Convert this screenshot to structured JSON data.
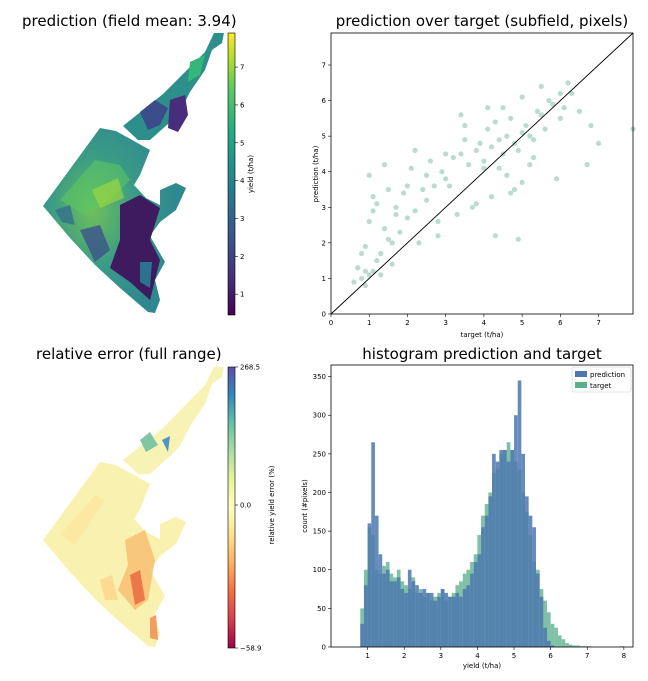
{
  "panels": {
    "prediction_map": {
      "title": "prediction (field mean: 3.94)",
      "colorbar_label": "yield (t/ha)",
      "colorbar_ticks": [
        "1",
        "2",
        "3",
        "4",
        "5",
        "6",
        "7"
      ],
      "colorbar_range": [
        0.45,
        7.9
      ],
      "colormap": "viridis-like (dark purple → teal → green → yellow)"
    },
    "error_map": {
      "title": "relative error (full range)",
      "colorbar_label": "relative yield error (%)",
      "colorbar_ticks": [
        "268.5",
        "0.0",
        "−58.9"
      ],
      "colormap": "Spectral (red → yellow → green → blue)"
    }
  },
  "chart_data": [
    {
      "type": "scatter",
      "title": "prediction over target (subfield, pixels)",
      "xlabel": "target (t/ha)",
      "ylabel": "prediction (t/ha)",
      "xlim": [
        0,
        7.9
      ],
      "ylim": [
        0,
        7.9
      ],
      "xticks": [
        "0",
        "1",
        "2",
        "3",
        "4",
        "5",
        "6",
        "7"
      ],
      "yticks": [
        "0",
        "1",
        "2",
        "3",
        "4",
        "5",
        "6",
        "7"
      ],
      "point_color": "#3a9a72",
      "reference_line": "y = x",
      "points_x": [
        0.6,
        0.8,
        0.9,
        1.0,
        1.1,
        1.2,
        0.7,
        0.9,
        1.3,
        1.5,
        1.0,
        1.4,
        1.6,
        1.8,
        2.0,
        1.2,
        1.7,
        1.9,
        2.2,
        2.4,
        0.8,
        1.1,
        2.5,
        2.7,
        3.0,
        2.1,
        2.6,
        2.9,
        3.2,
        3.4,
        3.6,
        3.1,
        3.8,
        4.0,
        4.2,
        4.4,
        3.9,
        4.1,
        4.5,
        4.6,
        4.8,
        5.0,
        4.3,
        4.7,
        4.9,
        5.1,
        5.3,
        5.5,
        5.2,
        5.4,
        5.6,
        5.8,
        6.0,
        5.7,
        6.1,
        6.3,
        6.5,
        4.6,
        4.8,
        5.0,
        5.2,
        4.4,
        4.2,
        3.7,
        3.3,
        3.5,
        2.8,
        2.3,
        1.6,
        1.3,
        0.9,
        1.0,
        1.5,
        2.0,
        2.5,
        3.0,
        3.5,
        4.0,
        4.5,
        5.0,
        5.5,
        6.0,
        6.8,
        7.0,
        7.9,
        6.7,
        6.2,
        5.9,
        4.9,
        4.3,
        1.1,
        1.4,
        1.7,
        2.2,
        2.8,
        3.4,
        3.8,
        4.1,
        4.7,
        5.3
      ],
      "points_y": [
        0.9,
        1.0,
        0.8,
        1.1,
        1.2,
        1.5,
        1.3,
        1.9,
        1.7,
        2.1,
        2.6,
        2.4,
        2.0,
        2.3,
        2.7,
        3.1,
        3.0,
        3.4,
        2.9,
        3.5,
        1.7,
        3.3,
        3.2,
        3.6,
        3.8,
        4.1,
        4.3,
        4.0,
        4.4,
        4.5,
        4.2,
        3.6,
        4.6,
        4.3,
        4.7,
        4.9,
        4.8,
        5.2,
        4.5,
        5.0,
        4.8,
        5.1,
        5.4,
        5.5,
        4.6,
        5.3,
        4.9,
        5.6,
        5.0,
        5.7,
        5.2,
        5.9,
        5.5,
        6.0,
        5.8,
        6.2,
        5.7,
        3.9,
        3.5,
        3.7,
        4.2,
        4.1,
        3.3,
        3.0,
        2.8,
        5.3,
        2.2,
        2.0,
        1.4,
        1.1,
        1.2,
        3.9,
        3.5,
        3.6,
        3.9,
        4.5,
        4.9,
        4.1,
        5.8,
        6.1,
        6.4,
        6.2,
        5.3,
        4.8,
        5.2,
        4.2,
        6.5,
        3.8,
        2.1,
        2.2,
        2.9,
        4.2,
        2.8,
        4.6,
        2.6,
        5.6,
        3.1,
        5.8,
        3.4,
        4.4
      ]
    },
    {
      "type": "histogram",
      "title": "histogram prediction and target",
      "xlabel": "yield (t/ha)",
      "ylabel": "count (#pixels)",
      "xlim": [
        0.0,
        8.25
      ],
      "ylim": [
        0,
        365
      ],
      "xticks": [
        "1",
        "2",
        "3",
        "4",
        "5",
        "6",
        "7",
        "8"
      ],
      "yticks": [
        "0",
        "50",
        "100",
        "150",
        "200",
        "250",
        "300",
        "350"
      ],
      "legend": "top-right",
      "bin_start": 0.3,
      "bin_width": 0.1,
      "series": [
        {
          "name": "prediction",
          "color": "#4c78b0",
          "values": [
            0,
            0,
            0,
            0,
            0,
            30,
            80,
            160,
            265,
            170,
            120,
            95,
            100,
            85,
            85,
            90,
            75,
            70,
            100,
            85,
            80,
            70,
            75,
            70,
            70,
            60,
            65,
            75,
            70,
            65,
            65,
            70,
            65,
            75,
            80,
            95,
            110,
            120,
            155,
            170,
            195,
            250,
            240,
            255,
            255,
            240,
            255,
            300,
            345,
            250,
            195,
            170,
            155,
            95,
            65,
            25,
            8,
            2,
            0,
            0,
            0,
            0,
            0,
            0,
            0,
            0,
            0,
            0,
            0,
            0,
            0,
            0,
            0,
            0,
            0,
            0,
            0,
            0
          ]
        },
        {
          "name": "target",
          "color": "#5ab08a",
          "values": [
            0,
            0,
            0,
            0,
            0,
            50,
            100,
            155,
            145,
            100,
            95,
            105,
            110,
            95,
            90,
            100,
            85,
            80,
            75,
            90,
            70,
            75,
            65,
            70,
            60,
            65,
            70,
            75,
            60,
            65,
            70,
            80,
            85,
            95,
            100,
            110,
            120,
            145,
            170,
            185,
            200,
            225,
            230,
            250,
            255,
            265,
            255,
            240,
            230,
            200,
            175,
            145,
            110,
            100,
            75,
            60,
            45,
            30,
            25,
            15,
            10,
            5,
            3,
            2,
            2,
            1,
            1,
            1,
            0,
            0,
            0,
            0,
            0,
            0,
            0,
            0,
            1,
            0
          ]
        }
      ]
    }
  ]
}
